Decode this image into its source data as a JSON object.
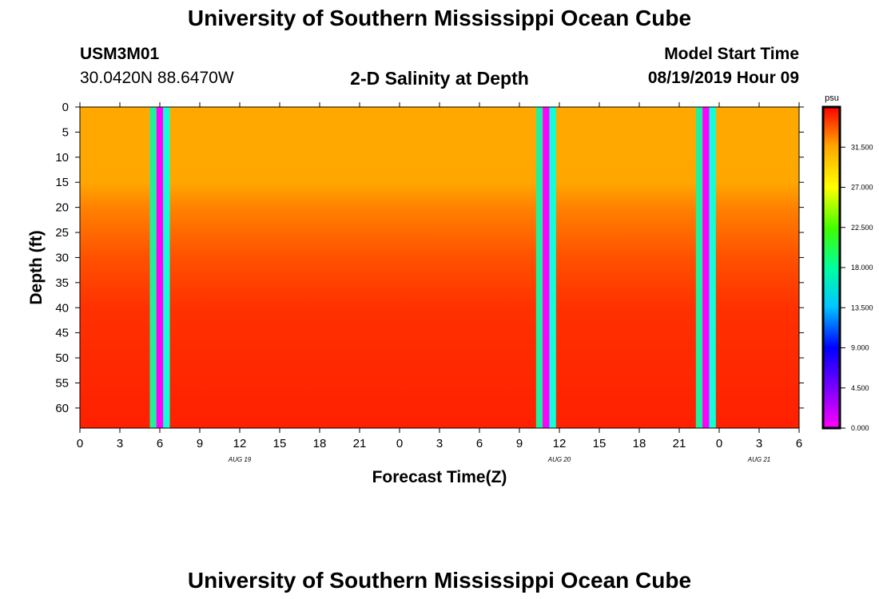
{
  "header": {
    "title": "University of Southern Mississippi Ocean Cube",
    "station_id": "USM3M01",
    "location": "30.0420N 88.6470W",
    "plot_title": "2-D Salinity at Depth",
    "model_start_label": "Model Start Time",
    "model_start_value": "08/19/2019 Hour 09"
  },
  "footer": {
    "title": "University of Southern Mississippi Ocean Cube"
  },
  "chart_data": {
    "type": "heatmap",
    "title": "2-D Salinity at Depth",
    "xlabel": "Forecast Time(Z)",
    "ylabel": "Depth (ft)",
    "x_range_hours": [
      0,
      54
    ],
    "y_range_ft": [
      0,
      64
    ],
    "x_tick_labels": [
      "0",
      "3",
      "6",
      "9",
      "12",
      "15",
      "18",
      "21",
      "0",
      "3",
      "6",
      "9",
      "12",
      "15",
      "18",
      "21",
      "0",
      "3",
      "6"
    ],
    "y_tick_labels": [
      "0",
      "5",
      "10",
      "15",
      "20",
      "25",
      "30",
      "35",
      "40",
      "45",
      "50",
      "55",
      "60"
    ],
    "date_labels": [
      {
        "text": "AUG 19",
        "hour": 12
      },
      {
        "text": "AUG 20",
        "hour": 36
      },
      {
        "text": "AUG 21",
        "hour": 51
      }
    ],
    "salinity_profile": [
      {
        "depth_ft": 0,
        "psu": 30.5
      },
      {
        "depth_ft": 15,
        "psu": 30.6
      },
      {
        "depth_ft": 20,
        "psu": 32.0
      },
      {
        "depth_ft": 30,
        "psu": 33.5
      },
      {
        "depth_ft": 40,
        "psu": 34.5
      },
      {
        "depth_ft": 64,
        "psu": 35.0
      }
    ],
    "missing_data_bands": [
      {
        "start_hour": 5.25,
        "end_hour": 6.75
      },
      {
        "start_hour": 34.25,
        "end_hour": 35.75
      },
      {
        "start_hour": 46.25,
        "end_hour": 47.75
      }
    ],
    "colorbar": {
      "unit": "psu",
      "min": 0,
      "max": 36,
      "tick_labels": [
        "31.500",
        "27.000",
        "22.500",
        "18.000",
        "13.500",
        "9.000",
        "4.500",
        "0.000"
      ],
      "tick_values": [
        31.5,
        27,
        22.5,
        18,
        13.5,
        9,
        4.5,
        0
      ]
    }
  }
}
